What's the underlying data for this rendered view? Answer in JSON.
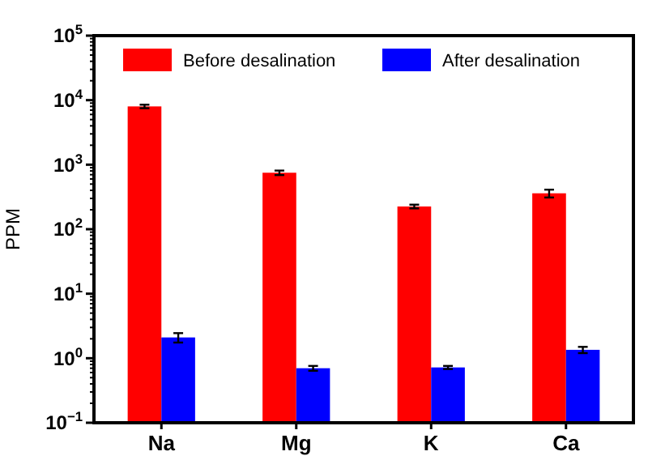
{
  "chart_data": {
    "type": "bar",
    "ylabel": "PPM",
    "categories": [
      "Na",
      "Mg",
      "K",
      "Ca"
    ],
    "series": [
      {
        "name": "Before desalination",
        "color": "#ff0000",
        "values": [
          8000,
          750,
          225,
          360
        ],
        "errors": [
          500,
          60,
          15,
          50
        ]
      },
      {
        "name": "After desalination",
        "color": "#0000ff",
        "values": [
          2.1,
          0.7,
          0.72,
          1.35
        ],
        "errors": [
          0.35,
          0.06,
          0.04,
          0.15
        ]
      }
    ],
    "log": true,
    "ylim": [
      0.1,
      100000
    ],
    "yticks": [
      {
        "value": 0.1,
        "label": "10$^{−1}$"
      },
      {
        "value": 1,
        "label": "10$^{0}$"
      },
      {
        "value": 10,
        "label": "10$^{1}$"
      },
      {
        "value": 100,
        "label": "10$^{2}$"
      },
      {
        "value": 1000,
        "label": "10$^{3}$"
      },
      {
        "value": 10000,
        "label": "10$^{4}$"
      },
      {
        "value": 100000,
        "label": "10$^{5}$"
      }
    ],
    "grid": false,
    "legend": "top"
  }
}
